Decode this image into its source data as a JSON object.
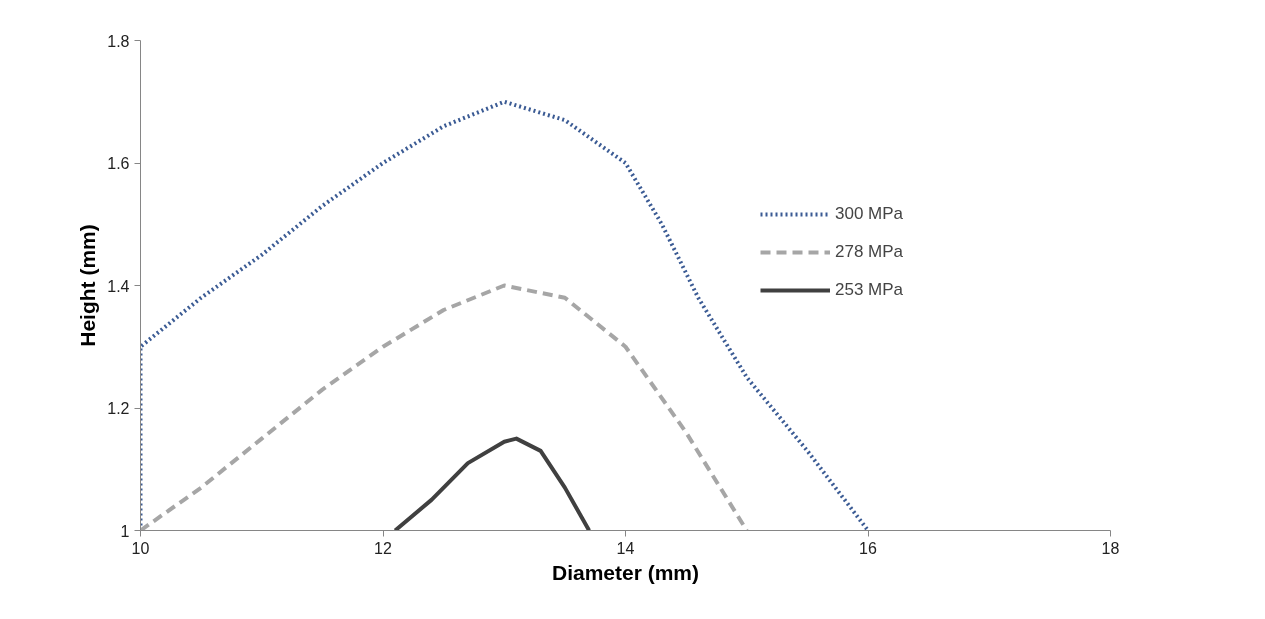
{
  "chart_data": {
    "type": "line",
    "xlabel": "Diameter (mm)",
    "ylabel": "Height (mm)",
    "xlim": [
      10,
      18
    ],
    "ylim": [
      1,
      1.8
    ],
    "xticks": [
      10,
      12,
      14,
      16,
      18
    ],
    "yticks": [
      1,
      1.2,
      1.4,
      1.6,
      1.8
    ],
    "grid": false,
    "legend": "right",
    "series": [
      {
        "name": "300 MPa",
        "color": "#3b5b94",
        "line_style": "dotted",
        "x": [
          10,
          10,
          10.5,
          11,
          11.5,
          12,
          12.5,
          13,
          13.5,
          14,
          14.3,
          14.6,
          15,
          15.5,
          16
        ],
        "values": [
          1.0,
          1.3,
          1.38,
          1.45,
          1.53,
          1.6,
          1.66,
          1.7,
          1.67,
          1.6,
          1.5,
          1.38,
          1.25,
          1.13,
          1.0
        ]
      },
      {
        "name": "278 MPa",
        "color": "#a6a6a6",
        "line_style": "dashed",
        "x": [
          10,
          10.5,
          11,
          11.5,
          12,
          12.5,
          13,
          13.5,
          14,
          14.5,
          15
        ],
        "values": [
          1.0,
          1.07,
          1.15,
          1.23,
          1.3,
          1.36,
          1.4,
          1.38,
          1.3,
          1.16,
          1.0
        ]
      },
      {
        "name": "253 MPa",
        "color": "#404040",
        "line_style": "solid",
        "x": [
          12.1,
          12.4,
          12.7,
          13.0,
          13.1,
          13.3,
          13.5,
          13.7
        ],
        "values": [
          1.0,
          1.05,
          1.11,
          1.145,
          1.15,
          1.13,
          1.07,
          1.0
        ]
      }
    ]
  }
}
